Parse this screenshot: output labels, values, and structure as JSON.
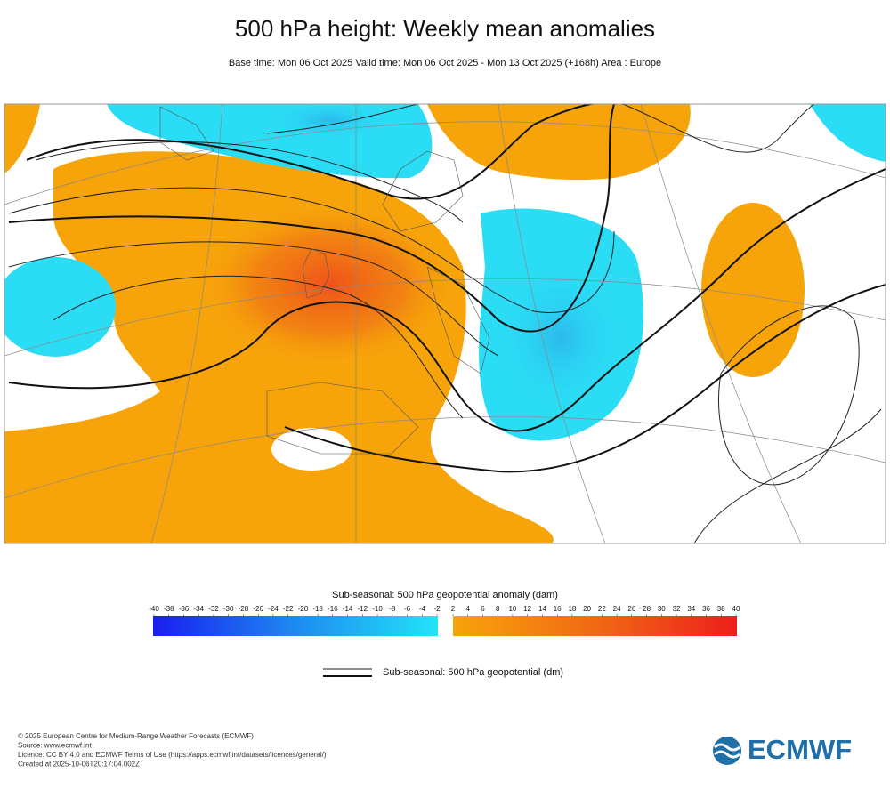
{
  "header": {
    "title": "500 hPa height: Weekly mean anomalies",
    "subtitle": "Base time: Mon 06 Oct 2025 Valid time: Mon 06 Oct 2025 - Mon 13 Oct 2025 (+168h) Area : Europe"
  },
  "colorbar": {
    "label": "Sub-seasonal: 500 hPa geopotential anomaly (dam)",
    "ticks": [
      -40,
      -38,
      -36,
      -34,
      -32,
      -30,
      -28,
      -26,
      -24,
      -22,
      -20,
      -18,
      -16,
      -14,
      -12,
      -10,
      -8,
      -6,
      -4,
      -2,
      2,
      4,
      6,
      8,
      10,
      12,
      14,
      16,
      18,
      20,
      22,
      24,
      26,
      28,
      30,
      32,
      34,
      36,
      38,
      40
    ]
  },
  "legend": {
    "label": "Sub-seasonal: 500 hPa geopotential (dm)"
  },
  "footer": {
    "lines": [
      "© 2025 European Centre for Medium-Range Weather Forecasts (ECMWF)",
      "Source: www.ecmwf.int",
      "Licence: CC BY 4.0 and ECMWF Terms of Use (https://apps.ecmwf.int/datasets/licences/general/)",
      "Created at 2025-10-06T20:17:04.002Z"
    ]
  },
  "logo": {
    "text": "ECMWF"
  }
}
